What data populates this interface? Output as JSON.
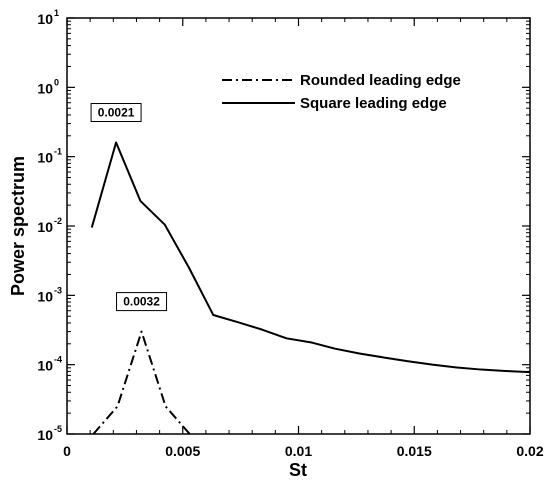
{
  "chart_data": {
    "type": "line",
    "xlabel": "St",
    "ylabel": "Power spectrum",
    "xlim": [
      0,
      0.02
    ],
    "ylim": [
      1e-05,
      10
    ],
    "yscale": "log",
    "grid": false,
    "legend_position": "top-right",
    "x_ticks": [
      {
        "value": 0,
        "label": "0"
      },
      {
        "value": 0.005,
        "label": "0.005"
      },
      {
        "value": 0.01,
        "label": "0.01"
      },
      {
        "value": 0.015,
        "label": "0.015"
      },
      {
        "value": 0.02,
        "label": "0.02"
      }
    ],
    "y_ticks": [
      {
        "value": 1e-05,
        "base": "10",
        "exp": "-5"
      },
      {
        "value": 0.0001,
        "base": "10",
        "exp": "-4"
      },
      {
        "value": 0.001,
        "base": "10",
        "exp": "-3"
      },
      {
        "value": 0.01,
        "base": "10",
        "exp": "-2"
      },
      {
        "value": 0.1,
        "base": "10",
        "exp": "-1"
      },
      {
        "value": 1,
        "base": "10",
        "exp": "0"
      },
      {
        "value": 10,
        "base": "10",
        "exp": "1"
      }
    ],
    "series": [
      {
        "name": "Rounded leading edge",
        "style": "dash-dot",
        "color": "#000000",
        "x": [
          0.00114,
          0.00218,
          0.00322,
          0.00426,
          0.0053
        ],
        "y": [
          1e-05,
          2.5e-05,
          0.0003,
          2.5e-05,
          1e-05
        ]
      },
      {
        "name": "Square leading edge",
        "style": "solid",
        "color": "#000000",
        "x": [
          0.00107,
          0.00212,
          0.00317,
          0.00422,
          0.00527,
          0.00632,
          0.00738,
          0.00843,
          0.00948,
          0.01053,
          0.01158,
          0.01263,
          0.01368,
          0.01473,
          0.01578,
          0.01684,
          0.01789,
          0.01894,
          0.02
        ],
        "y": [
          0.0095,
          0.16,
          0.023,
          0.0105,
          0.0025,
          0.00052,
          0.00041,
          0.00032,
          0.00024,
          0.00021,
          0.00017,
          0.000145,
          0.000127,
          0.000112,
          0.0001,
          9.1e-05,
          8.5e-05,
          8.1e-05,
          7.8e-05
        ]
      }
    ],
    "annotations": [
      {
        "text": "0.0021",
        "x": 0.00212,
        "y": 0.16
      },
      {
        "text": "0.0032",
        "x": 0.00322,
        "y": 0.0003
      }
    ]
  }
}
